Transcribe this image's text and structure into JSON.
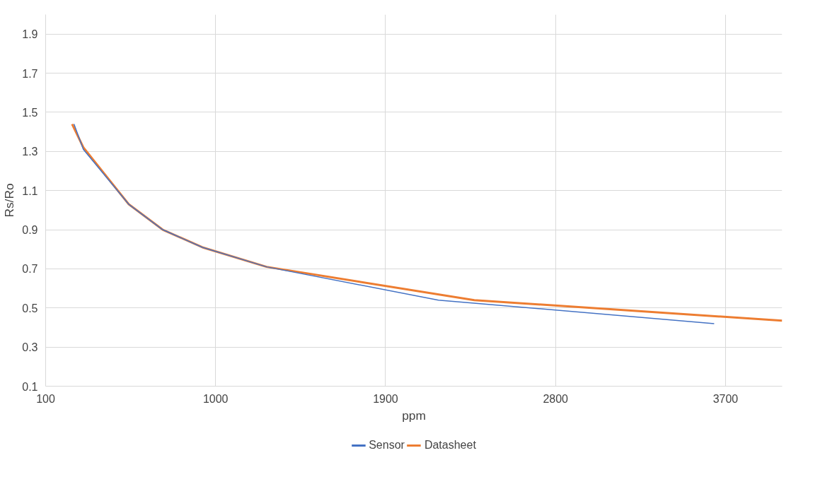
{
  "chart_data": {
    "type": "line",
    "xlabel": "ppm",
    "ylabel": "Rs/Ro",
    "xlim": [
      100,
      4000
    ],
    "xticks": [
      100,
      1000,
      1900,
      2800,
      3700
    ],
    "ylim": [
      0.1,
      2.0
    ],
    "yticks": [
      0.1,
      0.3,
      0.5,
      0.7,
      0.9,
      1.1,
      1.3,
      1.5,
      1.7,
      1.9
    ],
    "grid": true,
    "legend": "bottom",
    "marker": "none",
    "line_style": "solid",
    "series": [
      {
        "name": "Sensor",
        "color": "#4472c4",
        "x": [
          250,
          300,
          540,
          720,
          930,
          1270,
          2180,
          3640
        ],
        "values": [
          1.44,
          1.31,
          1.03,
          0.9,
          0.81,
          0.71,
          0.54,
          0.42
        ]
      },
      {
        "name": "Datasheet",
        "color": "#ed7d31",
        "x": [
          240,
          300,
          540,
          720,
          930,
          1270,
          2370,
          4000
        ],
        "values": [
          1.44,
          1.32,
          1.03,
          0.9,
          0.81,
          0.71,
          0.54,
          0.435
        ]
      }
    ]
  }
}
